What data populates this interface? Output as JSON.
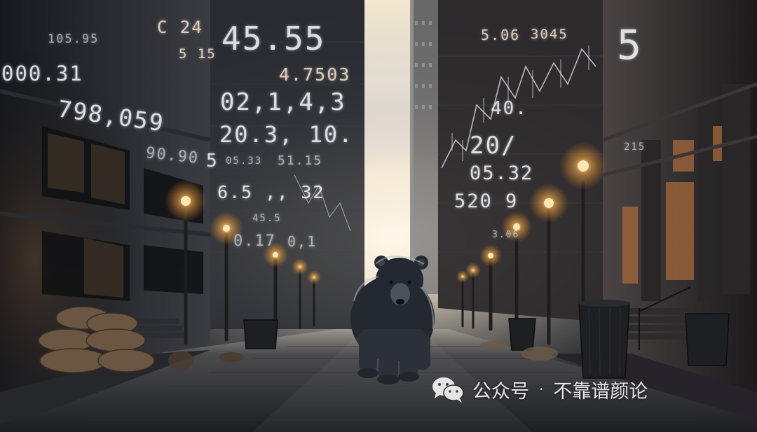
{
  "ticker_numbers": [
    "105.95",
    "000.31",
    "798,059",
    "90.90",
    "C 24",
    "5 15",
    "45.55",
    "4.7503",
    "02,1,4,3",
    "20.3, 10.",
    "5",
    "05.33",
    "51.15",
    "6.5 ,, 32",
    "45.5",
    "0.17",
    "0,1",
    "5.06",
    "3045",
    "5",
    "40.",
    "20/",
    "05.32",
    "520 9",
    "3.06",
    "215"
  ],
  "watermark": {
    "icon": "wechat-icon",
    "account_type": "公众号",
    "separator": "·",
    "account_name": "不靠谱颜论"
  },
  "colors": {
    "sky_glow": "#fff6e8",
    "lamp": "#ffcf7a",
    "building_dark": "#1a1c22",
    "street": "#2a2c31"
  }
}
